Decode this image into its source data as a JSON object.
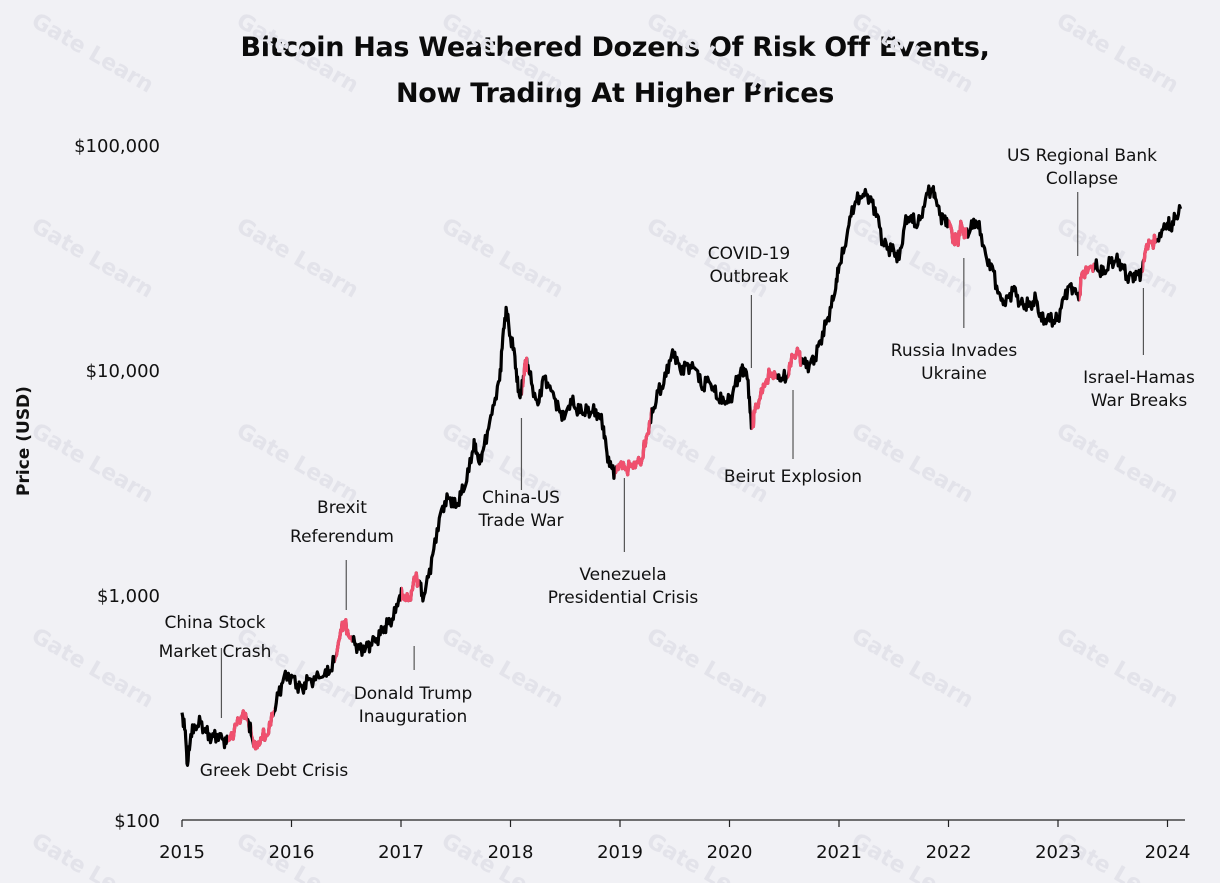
{
  "chart_data": {
    "type": "line",
    "title": "Bitcoin Has Weathered Dozens Of Risk Off Events,",
    "subtitle": "Now Trading At Higher Prices",
    "ylabel": "Price (USD)",
    "xlabel": "",
    "yscale": "log",
    "ylim": [
      100,
      100000
    ],
    "xlim": [
      2015.0,
      2024.15
    ],
    "grid": false,
    "y_tick_labels": [
      "$100",
      "$1,000",
      "$10,000",
      "$100,000"
    ],
    "y_tick_values": [
      100,
      1000,
      10000,
      100000
    ],
    "x_tick_labels": [
      "2015",
      "2016",
      "2017",
      "2018",
      "2019",
      "2020",
      "2021",
      "2022",
      "2023",
      "2024"
    ],
    "x_tick_values": [
      2015,
      2016,
      2017,
      2018,
      2019,
      2020,
      2021,
      2022,
      2023,
      2024
    ],
    "series": [
      {
        "color": "#000000",
        "points": [
          [
            2015.0,
            300
          ],
          [
            2015.03,
            250
          ],
          [
            2015.05,
            175
          ],
          [
            2015.08,
            240
          ],
          [
            2015.12,
            255
          ],
          [
            2015.17,
            270
          ],
          [
            2015.22,
            245
          ],
          [
            2015.27,
            232
          ],
          [
            2015.32,
            240
          ],
          [
            2015.38,
            228
          ],
          [
            2015.42,
            225
          ],
          [
            2015.5,
            265
          ],
          [
            2015.55,
            290
          ],
          [
            2015.6,
            280
          ],
          [
            2015.64,
            232
          ],
          [
            2015.68,
            210
          ],
          [
            2015.72,
            232
          ],
          [
            2015.78,
            238
          ],
          [
            2015.83,
            290
          ],
          [
            2015.88,
            360
          ],
          [
            2015.93,
            430
          ],
          [
            2016.0,
            440
          ],
          [
            2016.05,
            400
          ],
          [
            2016.1,
            385
          ],
          [
            2016.15,
            420
          ],
          [
            2016.22,
            420
          ],
          [
            2016.3,
            440
          ],
          [
            2016.35,
            455
          ],
          [
            2016.4,
            530
          ],
          [
            2016.45,
            700
          ],
          [
            2016.48,
            760
          ],
          [
            2016.52,
            660
          ],
          [
            2016.58,
            600
          ],
          [
            2016.62,
            575
          ],
          [
            2016.68,
            590
          ],
          [
            2016.72,
            610
          ],
          [
            2016.78,
            640
          ],
          [
            2016.83,
            700
          ],
          [
            2016.88,
            745
          ],
          [
            2016.93,
            780
          ],
          [
            2016.98,
            960
          ],
          [
            2017.02,
            1000
          ],
          [
            2017.08,
            950
          ],
          [
            2017.12,
            1200
          ],
          [
            2017.17,
            1150
          ],
          [
            2017.2,
            940
          ],
          [
            2017.25,
            1200
          ],
          [
            2017.3,
            1600
          ],
          [
            2017.35,
            2200
          ],
          [
            2017.4,
            2600
          ],
          [
            2017.45,
            2700
          ],
          [
            2017.5,
            2450
          ],
          [
            2017.55,
            2800
          ],
          [
            2017.6,
            3200
          ],
          [
            2017.65,
            4300
          ],
          [
            2017.68,
            4700
          ],
          [
            2017.71,
            3900
          ],
          [
            2017.75,
            4400
          ],
          [
            2017.8,
            5500
          ],
          [
            2017.85,
            7000
          ],
          [
            2017.9,
            9000
          ],
          [
            2017.93,
            14000
          ],
          [
            2017.96,
            19000
          ],
          [
            2018.0,
            14000
          ],
          [
            2018.04,
            11500
          ],
          [
            2018.07,
            8000
          ],
          [
            2018.1,
            7800
          ],
          [
            2018.13,
            10500
          ],
          [
            2018.16,
            10500
          ],
          [
            2018.2,
            8500
          ],
          [
            2018.25,
            7000
          ],
          [
            2018.3,
            9300
          ],
          [
            2018.35,
            8400
          ],
          [
            2018.4,
            7500
          ],
          [
            2018.45,
            6500
          ],
          [
            2018.5,
            6300
          ],
          [
            2018.55,
            7400
          ],
          [
            2018.6,
            6700
          ],
          [
            2018.65,
            6500
          ],
          [
            2018.7,
            6500
          ],
          [
            2018.75,
            6500
          ],
          [
            2018.8,
            6400
          ],
          [
            2018.85,
            5600
          ],
          [
            2018.88,
            4300
          ],
          [
            2018.92,
            3700
          ],
          [
            2018.96,
            3500
          ],
          [
            2019.0,
            3800
          ],
          [
            2019.05,
            3600
          ],
          [
            2019.1,
            3800
          ],
          [
            2019.15,
            3900
          ],
          [
            2019.2,
            4000
          ],
          [
            2019.25,
            5200
          ],
          [
            2019.3,
            6500
          ],
          [
            2019.35,
            8000
          ],
          [
            2019.4,
            8700
          ],
          [
            2019.45,
            11000
          ],
          [
            2019.5,
            12000
          ],
          [
            2019.55,
            10000
          ],
          [
            2019.6,
            10500
          ],
          [
            2019.65,
            10200
          ],
          [
            2019.7,
            10000
          ],
          [
            2019.75,
            8200
          ],
          [
            2019.8,
            9300
          ],
          [
            2019.85,
            8400
          ],
          [
            2019.9,
            7400
          ],
          [
            2019.95,
            7200
          ],
          [
            2020.0,
            7200
          ],
          [
            2020.05,
            8500
          ],
          [
            2020.1,
            9800
          ],
          [
            2020.13,
            10200
          ],
          [
            2020.17,
            9000
          ],
          [
            2020.2,
            5500
          ],
          [
            2020.23,
            6500
          ],
          [
            2020.28,
            7500
          ],
          [
            2020.33,
            8800
          ],
          [
            2020.38,
            9700
          ],
          [
            2020.43,
            9500
          ],
          [
            2020.48,
            9200
          ],
          [
            2020.53,
            9300
          ],
          [
            2020.58,
            11500
          ],
          [
            2020.63,
            11800
          ],
          [
            2020.68,
            10700
          ],
          [
            2020.73,
            10600
          ],
          [
            2020.78,
            11400
          ],
          [
            2020.83,
            13500
          ],
          [
            2020.88,
            16000
          ],
          [
            2020.93,
            19000
          ],
          [
            2020.97,
            23000
          ],
          [
            2021.0,
            29000
          ],
          [
            2021.05,
            35000
          ],
          [
            2021.1,
            48000
          ],
          [
            2021.15,
            56000
          ],
          [
            2021.2,
            58000
          ],
          [
            2021.25,
            60000
          ],
          [
            2021.3,
            56000
          ],
          [
            2021.35,
            49000
          ],
          [
            2021.4,
            37000
          ],
          [
            2021.45,
            35000
          ],
          [
            2021.5,
            34000
          ],
          [
            2021.55,
            31000
          ],
          [
            2021.6,
            44000
          ],
          [
            2021.65,
            48000
          ],
          [
            2021.7,
            44000
          ],
          [
            2021.75,
            48000
          ],
          [
            2021.8,
            61000
          ],
          [
            2021.85,
            64000
          ],
          [
            2021.88,
            58000
          ],
          [
            2021.92,
            49000
          ],
          [
            2021.96,
            47000
          ],
          [
            2022.0,
            46000
          ],
          [
            2022.05,
            38000
          ],
          [
            2022.08,
            37000
          ],
          [
            2022.12,
            44000
          ],
          [
            2022.16,
            39000
          ],
          [
            2022.2,
            42000
          ],
          [
            2022.25,
            46000
          ],
          [
            2022.3,
            40000
          ],
          [
            2022.35,
            31000
          ],
          [
            2022.4,
            29000
          ],
          [
            2022.45,
            22000
          ],
          [
            2022.5,
            19500
          ],
          [
            2022.55,
            21000
          ],
          [
            2022.6,
            23500
          ],
          [
            2022.65,
            20000
          ],
          [
            2022.7,
            19500
          ],
          [
            2022.75,
            19300
          ],
          [
            2022.8,
            20500
          ],
          [
            2022.85,
            16500
          ],
          [
            2022.9,
            16800
          ],
          [
            2022.96,
            16600
          ],
          [
            2023.0,
            17000
          ],
          [
            2023.05,
            21000
          ],
          [
            2023.1,
            23500
          ],
          [
            2023.15,
            22500
          ],
          [
            2023.19,
            20500
          ],
          [
            2023.22,
            27000
          ],
          [
            2023.28,
            28500
          ],
          [
            2023.33,
            29500
          ],
          [
            2023.38,
            27500
          ],
          [
            2023.42,
            26800
          ],
          [
            2023.48,
            30000
          ],
          [
            2023.53,
            30500
          ],
          [
            2023.58,
            29500
          ],
          [
            2023.63,
            26000
          ],
          [
            2023.68,
            26500
          ],
          [
            2023.72,
            26500
          ],
          [
            2023.77,
            27500
          ],
          [
            2023.8,
            34000
          ],
          [
            2023.85,
            37000
          ],
          [
            2023.9,
            37500
          ],
          [
            2023.95,
            42000
          ],
          [
            2024.0,
            45000
          ],
          [
            2024.03,
            42000
          ],
          [
            2024.07,
            47000
          ],
          [
            2024.12,
            52000
          ]
        ]
      }
    ],
    "highlight_color": "#f0506e",
    "highlight_ranges": [
      [
        2015.42,
        2015.6
      ],
      [
        2015.64,
        2015.84
      ],
      [
        2016.4,
        2016.55
      ],
      [
        2017.0,
        2017.17
      ],
      [
        2018.11,
        2018.16
      ],
      [
        2018.96,
        2019.28
      ],
      [
        2020.2,
        2020.43
      ],
      [
        2020.53,
        2020.66
      ],
      [
        2022.0,
        2022.17
      ],
      [
        2023.19,
        2023.33
      ],
      [
        2023.77,
        2023.9
      ]
    ],
    "annotations": [
      {
        "lines": [
          "China Stock",
          "Market Crash"
        ],
        "x": 2015.36,
        "y_from": 225
      },
      {
        "lines": [
          "Greek Debt Crisis"
        ],
        "x": 2015.59
      },
      {
        "lines": [
          "Brexit",
          "Referendum"
        ],
        "x": 2016.5,
        "y_from": 800
      },
      {
        "lines": [
          "Donald Trump",
          "Inauguration"
        ],
        "x": 2017.12,
        "y_from": 870
      },
      {
        "lines": [
          "China-US",
          "Trade War"
        ],
        "x": 2018.1,
        "y_from": 7800
      },
      {
        "lines": [
          "Venezuela",
          "Presidential Crisis"
        ],
        "x": 2019.04,
        "y_from": 3800
      },
      {
        "lines": [
          "COVID-19",
          "Outbreak"
        ],
        "x": 2020.2,
        "y_from": 9900
      },
      {
        "lines": [
          "Beirut Explosion"
        ],
        "x": 2020.58,
        "y_from": 9400
      },
      {
        "lines": [
          "Russia Invades",
          "Ukraine"
        ],
        "x": 2022.14,
        "y_from": 35000
      },
      {
        "lines": [
          "US Regional Bank",
          "Collapse"
        ],
        "x": 2023.18,
        "y_from": 26500
      },
      {
        "lines": [
          "Israel-Hamas",
          "War Breaks"
        ],
        "x": 2023.78,
        "y_from": 26500
      }
    ]
  },
  "watermark": "Gate Learn"
}
